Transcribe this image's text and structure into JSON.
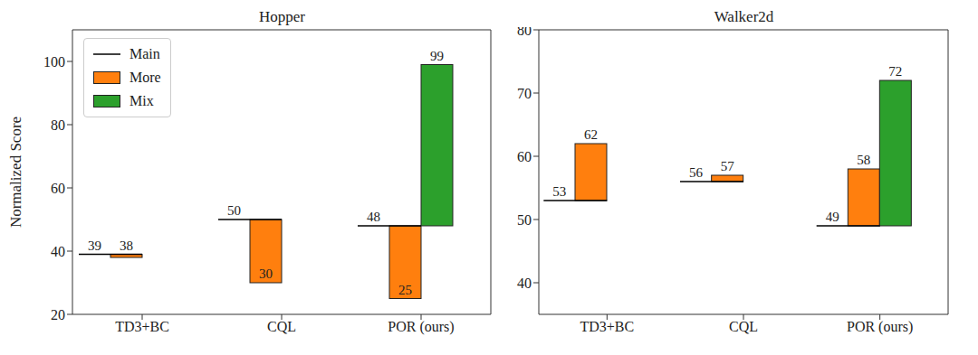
{
  "chart_data": [
    {
      "type": "bar",
      "title": "Hopper",
      "ylabel": "Normalized Score",
      "categories": [
        "TD3+BC",
        "CQL",
        "POR (ours)"
      ],
      "series": [
        {
          "name": "Main",
          "type": "line",
          "color": "#000000",
          "values": [
            39,
            50,
            48
          ]
        },
        {
          "name": "More",
          "type": "bar",
          "color": "#ff7f0e",
          "values": [
            38,
            30,
            25
          ]
        },
        {
          "name": "Mix",
          "type": "bar",
          "color": "#2ca02c",
          "values": [
            null,
            null,
            99
          ]
        }
      ],
      "ylim": [
        20,
        110
      ],
      "yticks": [
        20,
        40,
        60,
        80,
        100
      ],
      "grid": false,
      "legend": "upper left",
      "data_labels": true
    },
    {
      "type": "bar",
      "title": "Walker2d",
      "categories": [
        "TD3+BC",
        "CQL",
        "POR (ours)"
      ],
      "series": [
        {
          "name": "Main",
          "type": "line",
          "color": "#000000",
          "values": [
            53,
            56,
            49
          ]
        },
        {
          "name": "More",
          "type": "bar",
          "color": "#ff7f0e",
          "values": [
            62,
            57,
            58
          ]
        },
        {
          "name": "Mix",
          "type": "bar",
          "color": "#2ca02c",
          "values": [
            null,
            null,
            72
          ]
        }
      ],
      "ylim": [
        35,
        80
      ],
      "yticks": [
        40,
        50,
        60,
        70,
        80
      ],
      "grid": false,
      "data_labels": true
    }
  ]
}
